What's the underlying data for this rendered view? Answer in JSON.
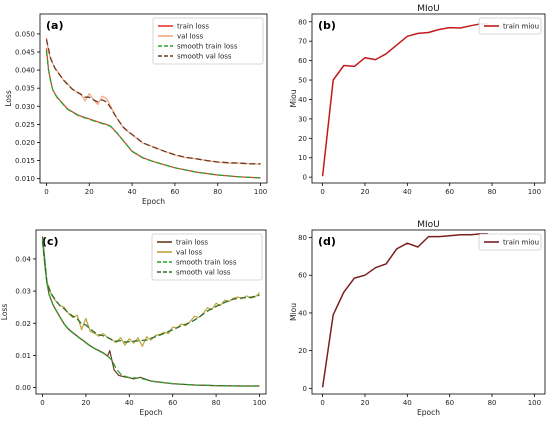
{
  "figure": {
    "colors": {
      "axis": "#000000",
      "legend_border": "#cccccc"
    }
  },
  "chart_data": [
    {
      "type": "line",
      "panel_label": "(a)",
      "title": "",
      "xlabel": "Epoch",
      "ylabel": "Loss",
      "xlim": [
        -3,
        103
      ],
      "ylim": [
        0.0088,
        0.0555
      ],
      "xticks": [
        0,
        20,
        40,
        60,
        80,
        100
      ],
      "yticks": [
        0.01,
        0.015,
        0.02,
        0.025,
        0.03,
        0.035,
        0.04,
        0.045,
        0.05
      ],
      "yticklabels": [
        "0.010",
        "0.015",
        "0.020",
        "0.025",
        "0.030",
        "0.035",
        "0.040",
        "0.045",
        "0.050"
      ],
      "legend": "top-right",
      "series": [
        {
          "name": "train loss",
          "color": "#e8352e",
          "dash": "solid",
          "width": 1.2,
          "x": [
            0,
            1,
            2,
            3,
            5,
            8,
            10,
            15,
            20,
            25,
            28,
            30,
            33,
            36,
            40,
            45,
            50,
            60,
            70,
            80,
            90,
            100
          ],
          "values": [
            0.046,
            0.04,
            0.037,
            0.0345,
            0.0325,
            0.0305,
            0.0292,
            0.0275,
            0.0265,
            0.0255,
            0.025,
            0.0245,
            0.0225,
            0.0205,
            0.0175,
            0.0158,
            0.0147,
            0.013,
            0.0118,
            0.011,
            0.0105,
            0.0102
          ]
        },
        {
          "name": "val loss",
          "color": "#f4a582",
          "dash": "solid",
          "width": 1.2,
          "x": [
            0,
            1,
            2,
            4,
            6,
            8,
            10,
            12,
            14,
            16,
            18,
            20,
            22,
            24,
            26,
            28,
            30,
            32,
            34,
            36,
            38,
            40,
            45,
            50,
            55,
            60,
            65,
            70,
            75,
            80,
            85,
            90,
            95,
            100
          ],
          "values": [
            0.049,
            0.045,
            0.043,
            0.0405,
            0.039,
            0.0372,
            0.0362,
            0.0347,
            0.034,
            0.0335,
            0.0315,
            0.0335,
            0.0318,
            0.0305,
            0.0328,
            0.0322,
            0.03,
            0.0275,
            0.0258,
            0.024,
            0.023,
            0.0222,
            0.0198,
            0.0188,
            0.0176,
            0.0165,
            0.0158,
            0.0155,
            0.015,
            0.0146,
            0.0143,
            0.0143,
            0.0141,
            0.014
          ]
        },
        {
          "name": "smooth train loss",
          "color": "#2ca02c",
          "dash": "6,3",
          "width": 1.3,
          "x": [
            0,
            1,
            2,
            3,
            5,
            8,
            10,
            15,
            20,
            25,
            28,
            30,
            33,
            36,
            40,
            45,
            50,
            60,
            70,
            80,
            90,
            100
          ],
          "values": [
            0.0455,
            0.0398,
            0.0368,
            0.0345,
            0.0324,
            0.0304,
            0.0291,
            0.0274,
            0.0264,
            0.0254,
            0.0249,
            0.0244,
            0.0226,
            0.0204,
            0.0176,
            0.0157,
            0.0147,
            0.013,
            0.0118,
            0.011,
            0.0105,
            0.0102
          ]
        },
        {
          "name": "smooth val loss",
          "color": "#6b3a1f",
          "dash": "6,3",
          "width": 1.3,
          "x": [
            0,
            2,
            4,
            6,
            8,
            10,
            12,
            14,
            16,
            18,
            20,
            22,
            24,
            26,
            28,
            30,
            32,
            34,
            36,
            38,
            40,
            45,
            50,
            55,
            60,
            65,
            70,
            75,
            80,
            85,
            90,
            95,
            100
          ],
          "values": [
            0.0485,
            0.0432,
            0.0405,
            0.0388,
            0.0372,
            0.036,
            0.0348,
            0.034,
            0.0333,
            0.0325,
            0.0325,
            0.0318,
            0.0312,
            0.0318,
            0.0312,
            0.0296,
            0.0276,
            0.0258,
            0.0242,
            0.0231,
            0.0222,
            0.0199,
            0.0187,
            0.0176,
            0.0166,
            0.0159,
            0.0155,
            0.015,
            0.0146,
            0.0144,
            0.0143,
            0.0141,
            0.0141
          ]
        }
      ]
    },
    {
      "type": "line",
      "panel_label": "(b)",
      "title": "MIoU",
      "xlabel": "",
      "ylabel": "Miou",
      "xlim": [
        -5,
        105
      ],
      "ylim": [
        -3,
        84
      ],
      "xticks": [
        0,
        20,
        40,
        60,
        80,
        100
      ],
      "yticks": [
        0,
        10,
        20,
        30,
        40,
        50,
        60,
        70,
        80
      ],
      "yticklabels": [
        "0",
        "10",
        "20",
        "30",
        "40",
        "50",
        "60",
        "70",
        "80"
      ],
      "legend": "top-right",
      "series": [
        {
          "name": "train miou",
          "color": "#c21a1a",
          "dash": "solid",
          "width": 1.5,
          "x": [
            0,
            5,
            10,
            15,
            20,
            25,
            30,
            35,
            40,
            45,
            50,
            55,
            60,
            65,
            70,
            75,
            78
          ],
          "values": [
            0.5,
            50,
            57.5,
            57,
            61.5,
            60.5,
            63.5,
            68,
            72.5,
            74,
            74.5,
            76,
            77,
            76.8,
            78,
            79,
            79
          ]
        }
      ]
    },
    {
      "type": "line",
      "panel_label": "(c)",
      "title": "",
      "xlabel": "Epoch",
      "ylabel": "Loss",
      "xlim": [
        -3,
        103
      ],
      "ylim": [
        -0.002,
        0.049
      ],
      "xticks": [
        0,
        20,
        40,
        60,
        80,
        100
      ],
      "yticks": [
        0.0,
        0.01,
        0.02,
        0.03,
        0.04
      ],
      "yticklabels": [
        "0.00",
        "0.01",
        "0.02",
        "0.03",
        "0.04"
      ],
      "legend": "top-right",
      "series": [
        {
          "name": "train loss",
          "color": "#6b3a1f",
          "dash": "solid",
          "width": 1.2,
          "x": [
            0,
            1,
            2,
            3,
            5,
            8,
            10,
            12,
            15,
            18,
            20,
            22,
            25,
            28,
            30,
            31,
            32,
            33,
            35,
            38,
            40,
            42,
            45,
            50,
            60,
            70,
            80,
            90,
            100
          ],
          "values": [
            0.047,
            0.04,
            0.033,
            0.029,
            0.0255,
            0.022,
            0.0198,
            0.0182,
            0.0165,
            0.015,
            0.014,
            0.013,
            0.0118,
            0.0108,
            0.0098,
            0.0115,
            0.0085,
            0.0055,
            0.0038,
            0.0033,
            0.0031,
            0.0027,
            0.0032,
            0.002,
            0.0012,
            0.0008,
            0.0006,
            0.0005,
            0.0005
          ]
        },
        {
          "name": "val loss",
          "color": "#bfa33a",
          "dash": "solid",
          "width": 1.2,
          "x": [
            0,
            1,
            2,
            4,
            6,
            8,
            10,
            12,
            14,
            16,
            18,
            20,
            22,
            24,
            26,
            28,
            30,
            32,
            34,
            36,
            38,
            40,
            42,
            44,
            46,
            48,
            50,
            52,
            54,
            56,
            58,
            60,
            62,
            64,
            66,
            68,
            70,
            72,
            74,
            76,
            78,
            80,
            82,
            84,
            86,
            88,
            90,
            92,
            94,
            96,
            98,
            100
          ],
          "values": [
            0.046,
            0.038,
            0.033,
            0.029,
            0.027,
            0.0255,
            0.025,
            0.023,
            0.0218,
            0.0225,
            0.018,
            0.0215,
            0.0175,
            0.0168,
            0.016,
            0.0168,
            0.0155,
            0.0148,
            0.014,
            0.0155,
            0.0132,
            0.0152,
            0.0138,
            0.0155,
            0.0128,
            0.0158,
            0.0148,
            0.0162,
            0.0165,
            0.0172,
            0.0168,
            0.0188,
            0.0185,
            0.0198,
            0.0192,
            0.0205,
            0.0222,
            0.0218,
            0.023,
            0.0248,
            0.0242,
            0.0262,
            0.0255,
            0.0272,
            0.0268,
            0.0278,
            0.0282,
            0.0276,
            0.0285,
            0.0278,
            0.0282,
            0.0295
          ]
        },
        {
          "name": "smooth train loss",
          "color": "#2ca02c",
          "dash": "6,3",
          "width": 1.3,
          "x": [
            0,
            1,
            2,
            3,
            5,
            8,
            10,
            12,
            15,
            18,
            20,
            22,
            25,
            28,
            30,
            32,
            34,
            36,
            38,
            40,
            45,
            50,
            60,
            70,
            80,
            90,
            100
          ],
          "values": [
            0.0465,
            0.0395,
            0.033,
            0.029,
            0.0254,
            0.0219,
            0.0197,
            0.0181,
            0.0164,
            0.0149,
            0.0139,
            0.0129,
            0.0117,
            0.0107,
            0.0098,
            0.0085,
            0.0058,
            0.0042,
            0.0035,
            0.0031,
            0.0029,
            0.002,
            0.0012,
            0.0008,
            0.0006,
            0.0005,
            0.0005
          ]
        },
        {
          "name": "smooth val loss",
          "color": "#2a6e2a",
          "dash": "6,3",
          "width": 1.3,
          "x": [
            0,
            2,
            4,
            6,
            8,
            10,
            12,
            14,
            16,
            18,
            20,
            22,
            24,
            26,
            28,
            30,
            32,
            34,
            36,
            38,
            40,
            44,
            48,
            52,
            56,
            60,
            64,
            68,
            72,
            76,
            80,
            84,
            88,
            92,
            96,
            100
          ],
          "values": [
            0.0455,
            0.0328,
            0.0292,
            0.0272,
            0.0255,
            0.0245,
            0.0232,
            0.0222,
            0.0214,
            0.0198,
            0.0195,
            0.0182,
            0.0172,
            0.0164,
            0.0161,
            0.0156,
            0.0149,
            0.0144,
            0.0146,
            0.0141,
            0.0143,
            0.0145,
            0.0148,
            0.0158,
            0.0168,
            0.018,
            0.0192,
            0.0202,
            0.0218,
            0.0238,
            0.0252,
            0.0265,
            0.0275,
            0.0279,
            0.0281,
            0.0287
          ]
        }
      ]
    },
    {
      "type": "line",
      "panel_label": "(d)",
      "title": "MIoU",
      "xlabel": "Epoch",
      "ylabel": "Miou",
      "xlim": [
        -5,
        105
      ],
      "ylim": [
        -3,
        84
      ],
      "xticks": [
        0,
        20,
        40,
        60,
        80,
        100
      ],
      "yticks": [
        0,
        20,
        40,
        60,
        80
      ],
      "yticklabels": [
        "0",
        "20",
        "40",
        "60",
        "80"
      ],
      "legend": "top-right",
      "series": [
        {
          "name": "train miou",
          "color": "#7a1f1f",
          "dash": "solid",
          "width": 1.5,
          "x": [
            0,
            5,
            10,
            15,
            20,
            25,
            30,
            35,
            40,
            45,
            50,
            55,
            60,
            65,
            70,
            75,
            78
          ],
          "values": [
            0.5,
            39,
            51,
            58.5,
            60,
            64,
            66,
            74,
            77,
            75,
            80.5,
            80.5,
            81,
            81.5,
            81.5,
            82,
            82
          ]
        }
      ]
    }
  ]
}
